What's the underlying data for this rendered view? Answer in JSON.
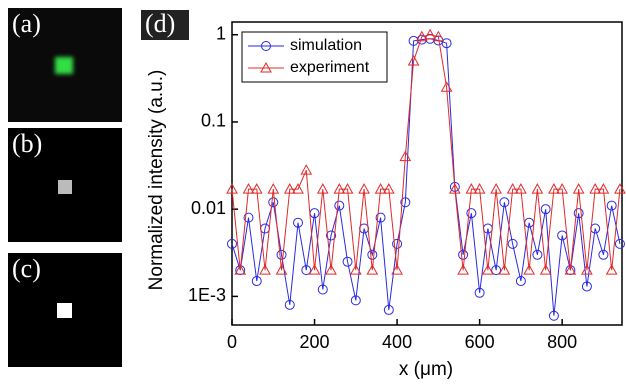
{
  "panel_labels": [
    "(a)",
    "(b)",
    "(c)"
  ],
  "chart_data": {
    "type": "line",
    "panel_label": "(d)",
    "x_label": "x (μm)",
    "y_label": "Normalized intensity (a.u.)",
    "log_y": true,
    "legend": "top-left",
    "xlim": [
      0,
      945
    ],
    "xticks": [
      0,
      200,
      400,
      600,
      800
    ],
    "ylim": [
      0.00047,
      1.4
    ],
    "yticks": [
      {
        "value": 0.001,
        "label": "1E-3"
      },
      0.01,
      0.1,
      1
    ],
    "x": [
      0,
      20,
      40,
      60,
      80,
      100,
      120,
      140,
      160,
      180,
      200,
      220,
      240,
      260,
      280,
      300,
      320,
      340,
      360,
      380,
      400,
      420,
      440,
      460,
      480,
      500,
      520,
      540,
      560,
      580,
      600,
      620,
      640,
      660,
      680,
      700,
      720,
      740,
      760,
      780,
      800,
      820,
      840,
      860,
      880,
      900,
      920,
      940
    ],
    "series": [
      {
        "name": "simulation",
        "color": "#2a2ae0",
        "marker": "circle",
        "values": [
          0.004,
          0.002,
          0.008,
          0.0015,
          0.006,
          0.012,
          0.003,
          0.0008,
          0.007,
          0.002,
          0.009,
          0.0012,
          0.005,
          0.011,
          0.0025,
          0.0009,
          0.006,
          0.003,
          0.008,
          0.0007,
          0.004,
          0.012,
          0.85,
          0.88,
          0.9,
          0.86,
          0.8,
          0.018,
          0.003,
          0.009,
          0.0011,
          0.006,
          0.002,
          0.012,
          0.004,
          0.0015,
          0.007,
          0.003,
          0.01,
          0.0006,
          0.005,
          0.002,
          0.009,
          0.0013,
          0.006,
          0.003,
          0.011,
          0.004
        ]
      },
      {
        "name": "experiment",
        "color": "#e02a2a",
        "marker": "triangle",
        "values": [
          0.017,
          0.002,
          0.017,
          0.017,
          0.002,
          0.017,
          0.002,
          0.017,
          0.017,
          0.028,
          0.002,
          0.017,
          0.002,
          0.017,
          0.017,
          0.002,
          0.017,
          0.002,
          0.017,
          0.017,
          0.002,
          0.04,
          0.5,
          0.95,
          1.0,
          0.95,
          0.25,
          0.017,
          0.002,
          0.017,
          0.017,
          0.002,
          0.017,
          0.002,
          0.017,
          0.017,
          0.002,
          0.017,
          0.002,
          0.017,
          0.017,
          0.002,
          0.017,
          0.002,
          0.017,
          0.017,
          0.002,
          0.017
        ]
      }
    ]
  }
}
